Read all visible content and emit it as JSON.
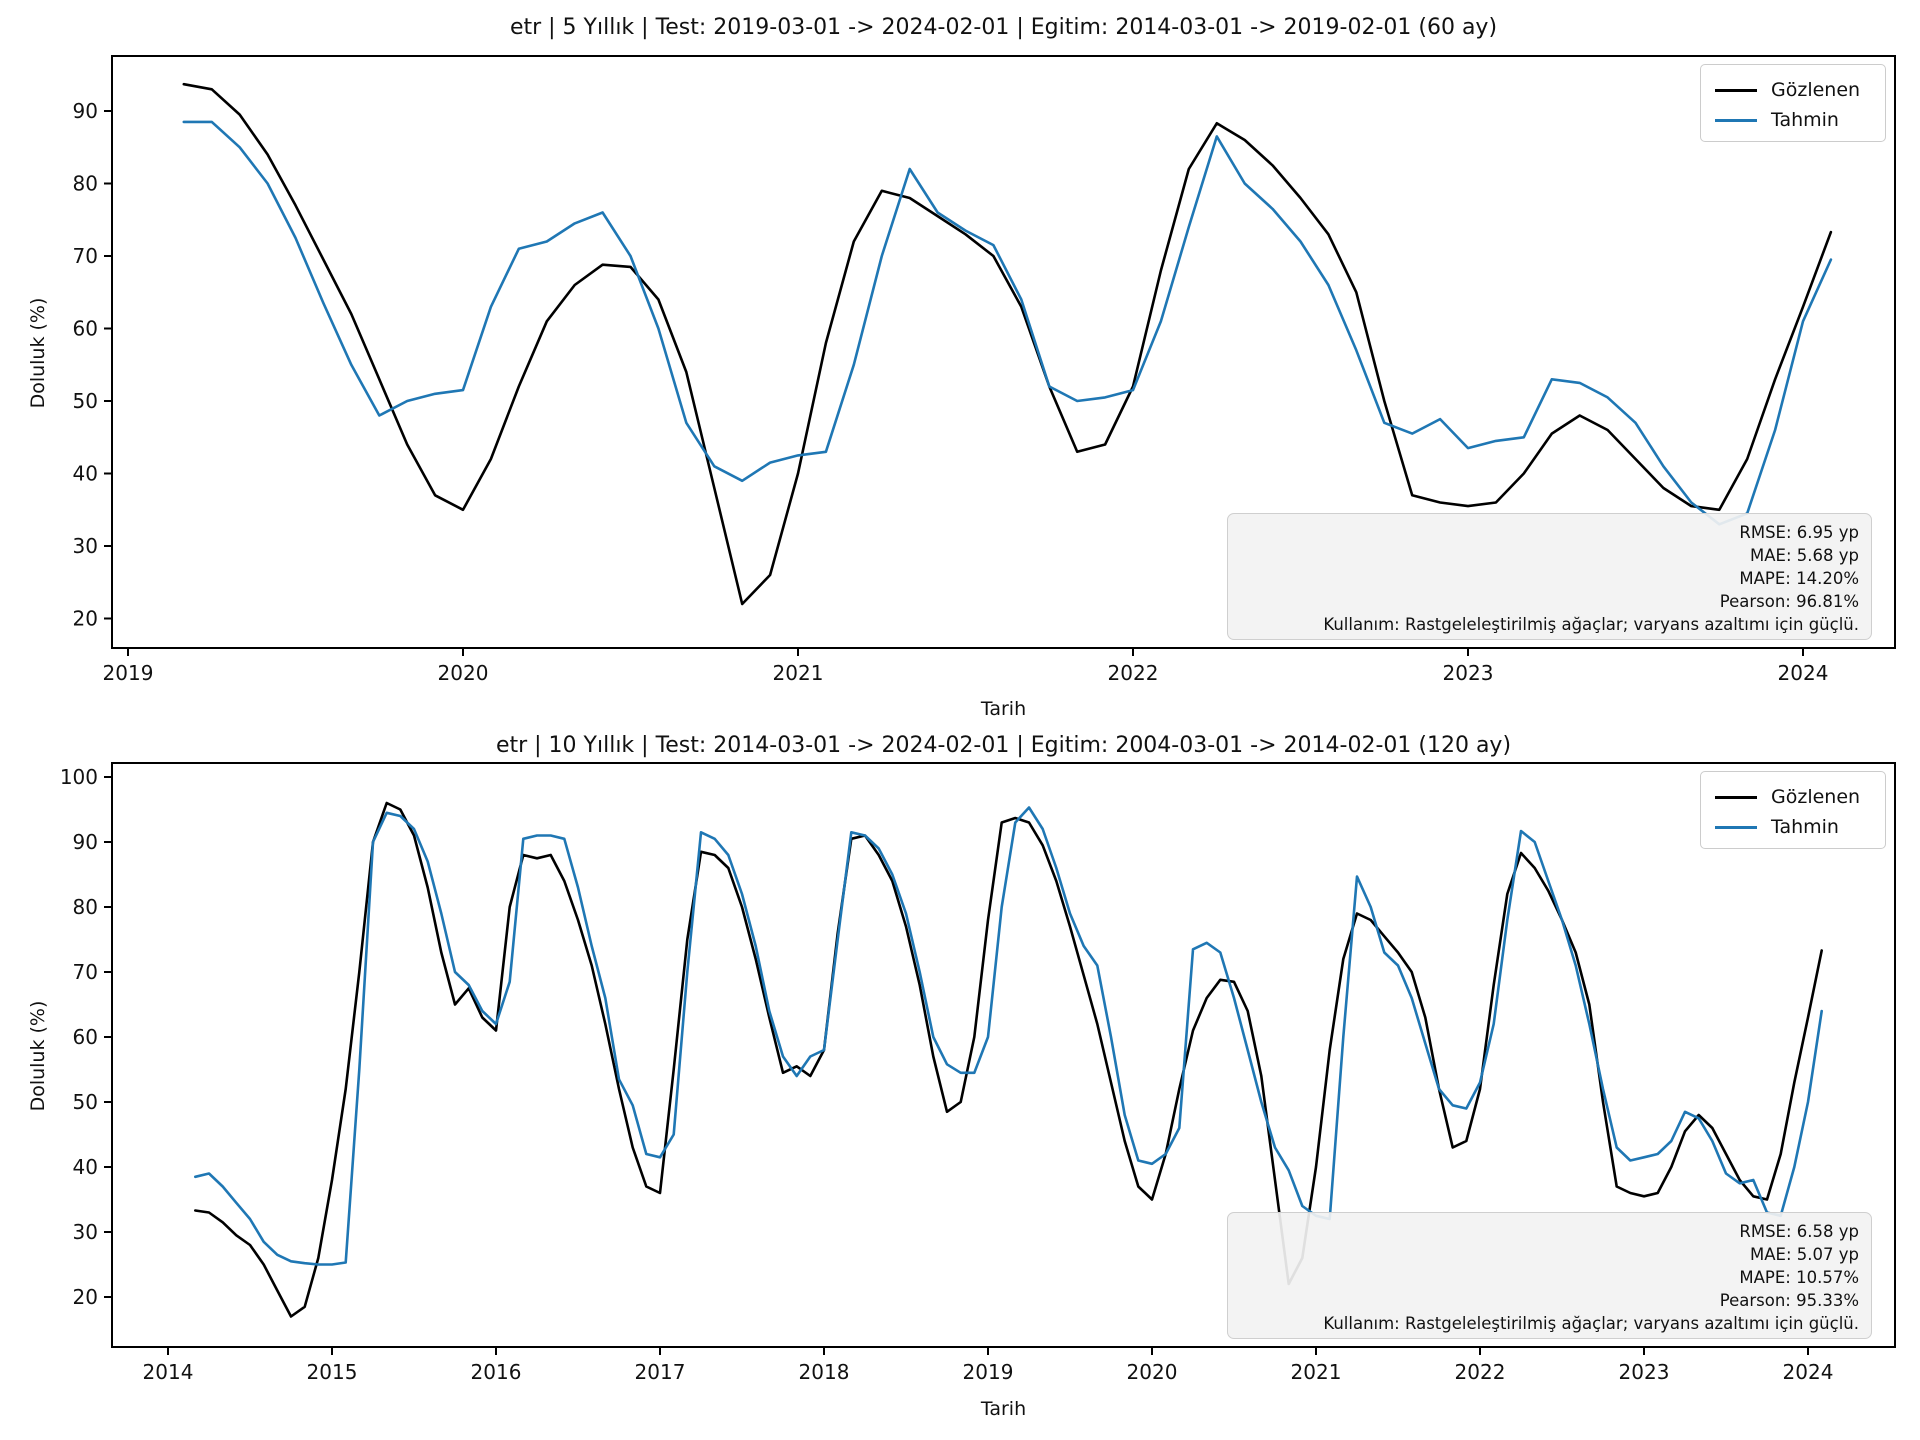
{
  "figure": {
    "background": "#ffffff",
    "text_color": "#111111",
    "observed_color": "#000000",
    "predicted_color": "#1f77b4",
    "stats_box_bg": "#f2f2f2",
    "box_border": "#cccccc"
  },
  "chart_data": [
    {
      "type": "line",
      "title": "etr | 5 Yıllık | Test: 2019-03-01 -> 2024-02-01 | Egitim: 2014-03-01 -> 2019-02-01 (60 ay)",
      "xlabel": "Tarih",
      "ylabel": "Doluluk (%)",
      "grid": false,
      "legend_position": "upper right",
      "x_start": {
        "year": 2019,
        "month": 3
      },
      "x_unit": "month",
      "x_ticks": [
        2019,
        2020,
        2021,
        2022,
        2023,
        2024
      ],
      "y_ticks": [
        20,
        30,
        40,
        50,
        60,
        70,
        80,
        90
      ],
      "xlim": [
        2018.95,
        2024.28
      ],
      "ylim": [
        15.9,
        97.6
      ],
      "series": [
        {
          "name": "Gözlenen",
          "color": "#000000",
          "values": [
            93.7,
            93.0,
            89.5,
            84.0,
            77.0,
            69.5,
            62.0,
            53.0,
            44.0,
            37.0,
            35.0,
            42.0,
            52.0,
            61.0,
            66.0,
            68.8,
            68.5,
            64.0,
            54.0,
            38.0,
            22.0,
            26.0,
            40.0,
            58.0,
            72.0,
            79.0,
            78.0,
            75.5,
            73.0,
            70.0,
            63.0,
            52.0,
            43.0,
            44.0,
            52.0,
            68.0,
            82.0,
            88.3,
            86.0,
            82.5,
            78.0,
            73.0,
            65.0,
            50.0,
            37.0,
            36.0,
            35.5,
            36.0,
            40.0,
            45.5,
            48.0,
            46.0,
            42.0,
            38.0,
            35.5,
            35.0,
            42.0,
            53.0,
            63.0,
            73.3
          ]
        },
        {
          "name": "Tahmin",
          "color": "#1f77b4",
          "values": [
            88.5,
            88.5,
            85.0,
            80.0,
            72.5,
            63.5,
            55.0,
            48.0,
            50.0,
            51.0,
            51.5,
            63.0,
            71.0,
            72.0,
            74.5,
            76.0,
            70.0,
            60.0,
            47.0,
            41.0,
            39.0,
            41.5,
            42.5,
            43.0,
            55.0,
            70.0,
            82.0,
            76.0,
            73.5,
            71.5,
            64.0,
            52.0,
            50.0,
            50.5,
            51.5,
            61.0,
            74.0,
            86.5,
            80.0,
            76.5,
            72.0,
            66.0,
            57.0,
            47.0,
            45.5,
            47.5,
            43.5,
            44.5,
            45.0,
            53.0,
            52.5,
            50.5,
            47.0,
            41.0,
            36.0,
            33.0,
            34.5,
            46.0,
            61.0,
            69.5
          ]
        }
      ],
      "stats_lines": [
        "RMSE: 6.95 yp",
        "MAE: 5.68 yp",
        "MAPE: 14.20%",
        "Pearson: 96.81%",
        "Kullanım: Rastgeleleştirilmiş ağaçlar; varyans azaltımı için güçlü."
      ]
    },
    {
      "type": "line",
      "title": "etr | 10 Yıllık | Test: 2014-03-01 -> 2024-02-01 | Egitim: 2004-03-01 -> 2014-02-01 (120 ay)",
      "xlabel": "Tarih",
      "ylabel": "Doluluk (%)",
      "grid": false,
      "legend_position": "upper right",
      "x_start": {
        "year": 2014,
        "month": 3
      },
      "x_unit": "month",
      "x_ticks": [
        2014,
        2015,
        2016,
        2017,
        2018,
        2019,
        2020,
        2021,
        2022,
        2023,
        2024
      ],
      "y_ticks": [
        20,
        30,
        40,
        50,
        60,
        70,
        80,
        90,
        100
      ],
      "xlim": [
        2013.66,
        2024.53
      ],
      "ylim": [
        12.3,
        102.0
      ],
      "series": [
        {
          "name": "Gözlenen",
          "color": "#000000",
          "values": [
            33.3,
            33.0,
            31.5,
            29.5,
            28.0,
            25.0,
            21.0,
            17.0,
            18.5,
            26.0,
            38.0,
            52.0,
            70.0,
            90.0,
            96.0,
            95.0,
            91.0,
            83.0,
            73.0,
            65.0,
            67.5,
            63.0,
            61.0,
            80.0,
            88.0,
            87.5,
            88.0,
            84.0,
            78.0,
            71.0,
            62.0,
            52.0,
            43.0,
            37.0,
            36.0,
            55.0,
            75.0,
            88.5,
            88.0,
            86.0,
            80.0,
            72.0,
            63.0,
            54.5,
            55.5,
            54.0,
            58.0,
            76.0,
            90.5,
            91.0,
            88.0,
            84.0,
            77.0,
            68.0,
            57.0,
            48.5,
            50.0,
            60.0,
            78.0,
            93.0,
            93.7,
            93.0,
            89.5,
            84.0,
            77.0,
            69.5,
            62.0,
            53.0,
            44.0,
            37.0,
            35.0,
            42.0,
            52.0,
            61.0,
            66.0,
            68.8,
            68.5,
            64.0,
            54.0,
            38.0,
            22.0,
            26.0,
            40.0,
            58.0,
            72.0,
            79.0,
            78.0,
            75.5,
            73.0,
            70.0,
            63.0,
            52.0,
            43.0,
            44.0,
            52.0,
            68.0,
            82.0,
            88.3,
            86.0,
            82.5,
            78.0,
            73.0,
            65.0,
            50.0,
            37.0,
            36.0,
            35.5,
            36.0,
            40.0,
            45.5,
            48.0,
            46.0,
            42.0,
            38.0,
            35.5,
            35.0,
            42.0,
            53.0,
            63.0,
            73.3
          ]
        },
        {
          "name": "Tahmin",
          "color": "#1f77b4",
          "values": [
            38.5,
            39.0,
            37.0,
            34.5,
            32.0,
            28.5,
            26.5,
            25.5,
            25.2,
            25.0,
            25.0,
            25.3,
            55.0,
            90.0,
            94.5,
            94.0,
            92.0,
            87.0,
            79.0,
            70.0,
            68.0,
            64.0,
            62.0,
            68.5,
            90.5,
            91.0,
            91.0,
            90.5,
            83.0,
            74.0,
            66.0,
            53.5,
            49.5,
            42.0,
            41.5,
            45.0,
            70.0,
            91.5,
            90.5,
            88.0,
            82.0,
            74.0,
            64.0,
            57.0,
            54.0,
            57.0,
            58.0,
            75.0,
            91.5,
            91.0,
            89.0,
            85.0,
            79.0,
            70.0,
            60.0,
            55.8,
            54.5,
            54.5,
            60.0,
            80.0,
            93.0,
            95.3,
            92.0,
            86.0,
            79.0,
            74.0,
            71.0,
            60.0,
            48.0,
            41.0,
            40.5,
            42.0,
            46.0,
            73.5,
            74.5,
            73.0,
            66.0,
            58.0,
            50.0,
            43.0,
            39.5,
            34.0,
            32.5,
            32.0,
            60.0,
            84.7,
            80.0,
            73.0,
            71.0,
            66.0,
            59.0,
            52.0,
            49.5,
            49.0,
            53.0,
            62.0,
            78.0,
            91.7,
            90.0,
            84.0,
            78.0,
            71.0,
            62.0,
            52.0,
            43.0,
            41.0,
            41.5,
            42.0,
            44.0,
            48.5,
            47.5,
            44.0,
            39.0,
            37.5,
            38.0,
            33.0,
            32.5,
            40.0,
            50.0,
            64.0
          ]
        }
      ],
      "stats_lines": [
        "RMSE: 6.58 yp",
        "MAE: 5.07 yp",
        "MAPE: 10.57%",
        "Pearson: 95.33%",
        "Kullanım: Rastgeleleştirilmiş ağaçlar; varyans azaltımı için güçlü."
      ]
    }
  ]
}
